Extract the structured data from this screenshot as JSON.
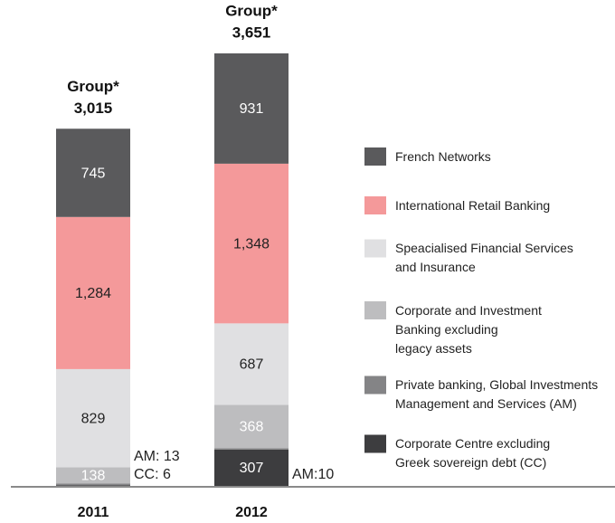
{
  "chart_data": {
    "type": "stacked_bar",
    "categories": [
      "2011",
      "2012"
    ],
    "totals": [
      3015,
      3651
    ],
    "total_labels": [
      "3,015",
      "3,651"
    ],
    "total_name": "Group*",
    "series": [
      {
        "name": "Corporate Centre excluding\nGreek sovereign debt (CC)",
        "color": "#3d3d3f",
        "values": [
          6,
          307
        ],
        "value_labels": [
          "CC: 6",
          "307"
        ]
      },
      {
        "name": "Private banking, Global Investments\nManagement and Services (AM)",
        "color": "#848486",
        "values": [
          13,
          10
        ],
        "value_labels": [
          "AM: 13",
          "AM:10"
        ]
      },
      {
        "name": "Corporate and Investment\nBanking excluding\nlegacy assets",
        "color": "#bdbdbf",
        "values": [
          138,
          368
        ]
      },
      {
        "name": "Speacialised Financial Services\nand Insurance",
        "color": "#e0e0e2",
        "values": [
          829,
          687
        ]
      },
      {
        "name": "International Retail Banking",
        "color": "#f4999a",
        "values": [
          1284,
          1348
        ],
        "value_labels": [
          "1,284",
          "1,348"
        ]
      },
      {
        "name": "French Networks",
        "color": "#5a5a5c",
        "values": [
          745,
          931
        ]
      }
    ]
  }
}
